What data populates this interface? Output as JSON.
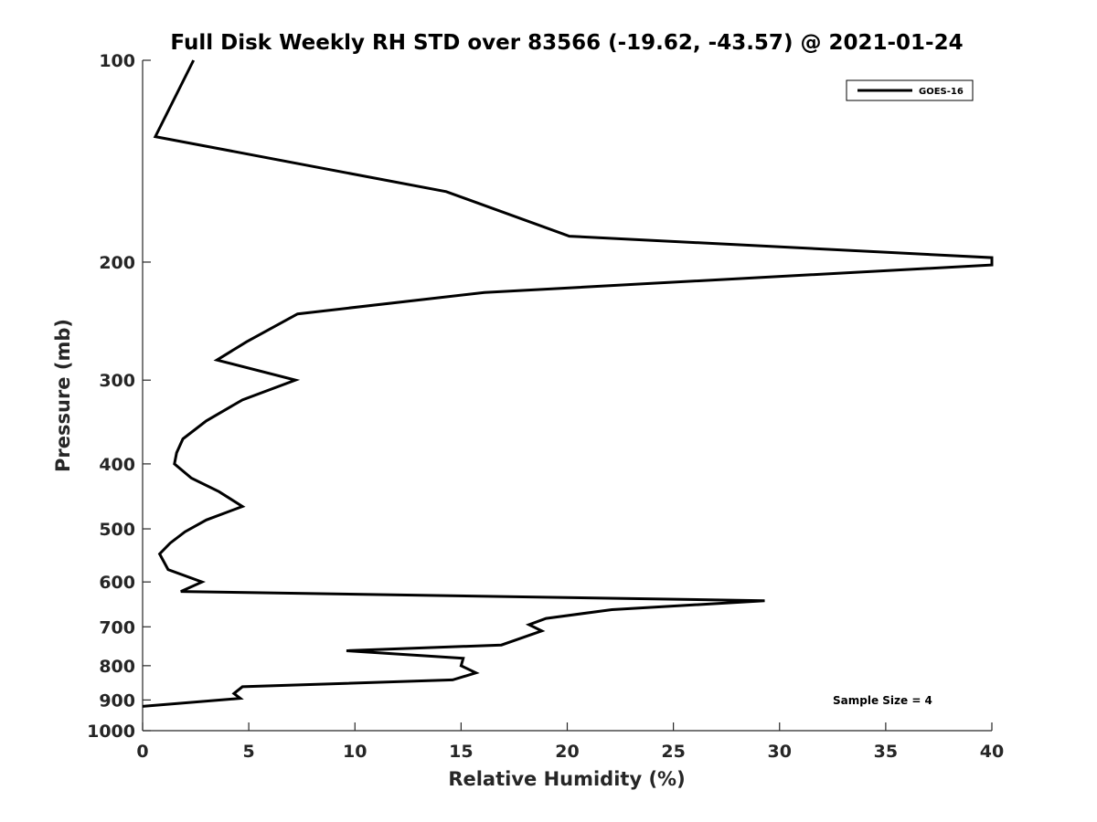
{
  "chart_data": {
    "type": "line",
    "title": "Full Disk Weekly RH STD over 83566 (-19.62, -43.57) @ 2021-01-24",
    "xlabel": "Relative Humidity (%)",
    "ylabel": "Pressure (mb)",
    "xlim": [
      0,
      40
    ],
    "ylim": [
      100,
      1000
    ],
    "yscale": "log",
    "y_reversed": true,
    "grid": false,
    "x_ticks": [
      0,
      5,
      10,
      15,
      20,
      25,
      30,
      35,
      40
    ],
    "y_ticks": [
      100,
      200,
      300,
      400,
      500,
      600,
      700,
      800,
      900,
      1000
    ],
    "legend": {
      "position": "top-right",
      "entries": [
        "GOES-16"
      ]
    },
    "annotations": [
      "Sample Size = 4"
    ],
    "series": [
      {
        "name": "GOES-16",
        "color": "#000000",
        "x": [
          2.4,
          0.6,
          14.3,
          20.1,
          40.0,
          40.0,
          16.1,
          7.3,
          4.9,
          3.5,
          7.2,
          4.7,
          3.0,
          1.9,
          1.6,
          1.5,
          2.3,
          3.6,
          4.7,
          3.0,
          2.0,
          1.3,
          0.8,
          1.2,
          2.8,
          1.8,
          29.3,
          22.1,
          19.0,
          18.2,
          18.8,
          16.9,
          9.6,
          15.1,
          15.0,
          15.7,
          14.6,
          4.7,
          4.3,
          4.6,
          0.0
        ],
        "y": [
          100,
          130,
          157,
          183,
          197,
          202,
          222,
          239,
          263,
          280,
          300,
          321,
          345,
          367,
          385,
          400,
          420,
          440,
          463,
          485,
          505,
          525,
          545,
          575,
          600,
          620,
          640,
          660,
          680,
          695,
          710,
          745,
          760,
          780,
          800,
          820,
          840,
          860,
          880,
          895,
          920
        ]
      }
    ]
  }
}
